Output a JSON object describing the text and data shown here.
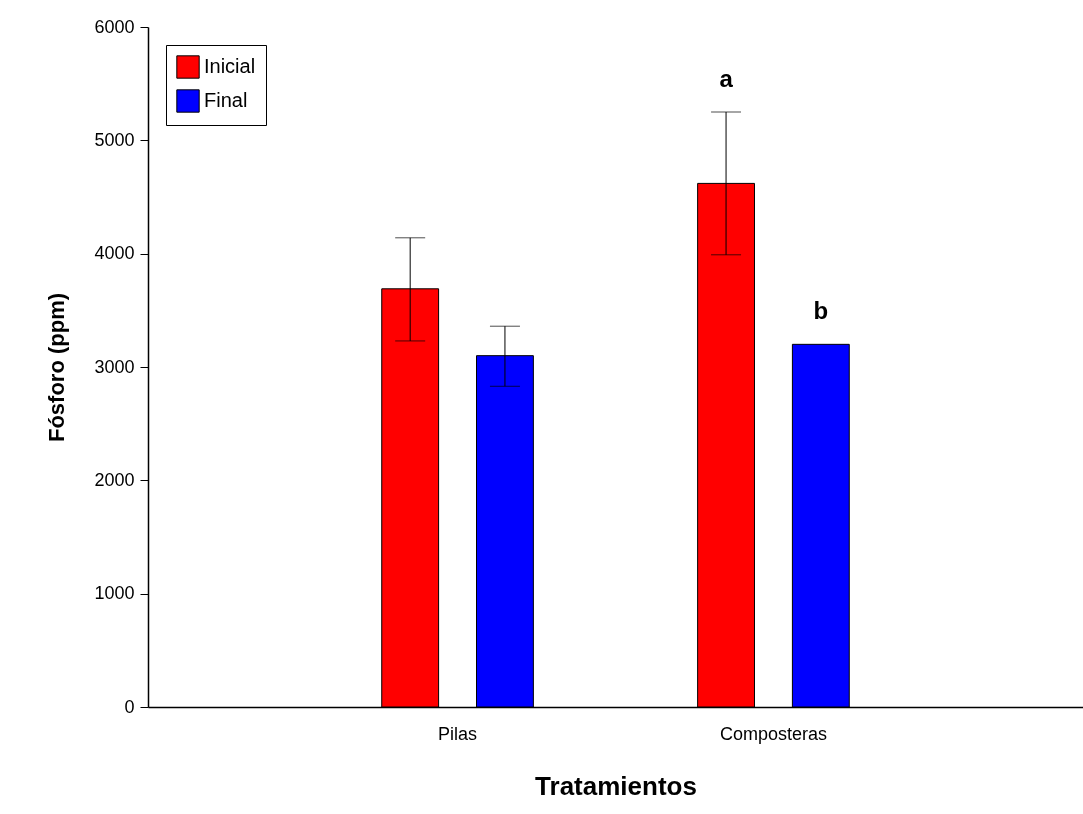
{
  "chart_data": {
    "type": "bar",
    "xlabel": "Tratamientos",
    "ylabel": "Fósforo (ppm)",
    "categories": [
      "Pilas",
      "Composteras"
    ],
    "series": [
      {
        "name": "Inicial",
        "color": "#ff0000",
        "values": [
          3690,
          4620
        ],
        "errors": [
          [
            3230,
            4140
          ],
          [
            3990,
            5250
          ]
        ]
      },
      {
        "name": "Final",
        "color": "#0000ff",
        "values": [
          3100,
          3200
        ],
        "errors": [
          [
            2830,
            3360
          ],
          null
        ]
      }
    ],
    "ylim": [
      0,
      6000
    ],
    "yticks": [
      0,
      1000,
      2000,
      3000,
      4000,
      5000,
      6000
    ],
    "legend": "top left",
    "annotations": [
      "a",
      "b"
    ]
  }
}
